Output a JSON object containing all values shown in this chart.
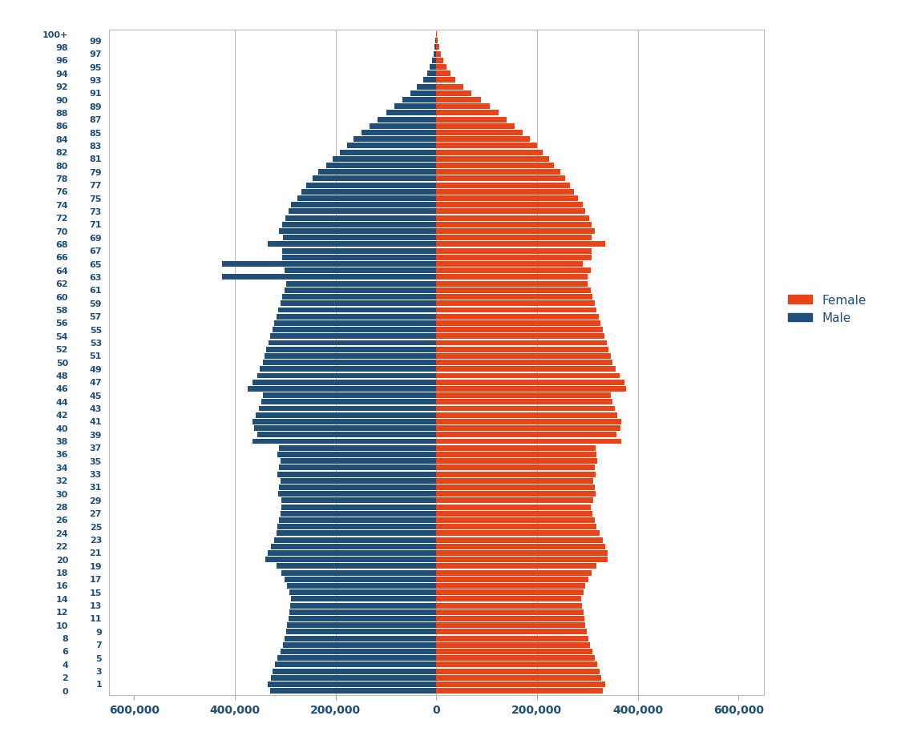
{
  "male_color": "#1F4E79",
  "female_color": "#E8441A",
  "background_color": "#FFFFFF",
  "legend_female": "Female",
  "legend_male": "Male",
  "xlim": 650000,
  "xticks": [
    -600000,
    -400000,
    -200000,
    0,
    200000,
    400000,
    600000
  ],
  "xtick_labels": [
    "600,000",
    "400,000",
    "200,000",
    "0",
    "200,000",
    "400,000",
    "600,000"
  ],
  "ages": [
    0,
    1,
    2,
    3,
    4,
    5,
    6,
    7,
    8,
    9,
    10,
    11,
    12,
    13,
    14,
    15,
    16,
    17,
    18,
    19,
    20,
    21,
    22,
    23,
    24,
    25,
    26,
    27,
    28,
    29,
    30,
    31,
    32,
    33,
    34,
    35,
    36,
    37,
    38,
    39,
    40,
    41,
    42,
    43,
    44,
    45,
    46,
    47,
    48,
    49,
    50,
    51,
    52,
    53,
    54,
    55,
    56,
    57,
    58,
    59,
    60,
    61,
    62,
    63,
    64,
    65,
    66,
    67,
    68,
    69,
    70,
    71,
    72,
    73,
    74,
    75,
    76,
    77,
    78,
    79,
    80,
    81,
    82,
    83,
    84,
    85,
    86,
    87,
    88,
    89,
    90,
    91,
    92,
    93,
    94,
    95,
    96,
    97,
    98,
    99,
    100
  ],
  "male": [
    330000,
    335000,
    328000,
    325000,
    320000,
    315000,
    310000,
    305000,
    302000,
    299000,
    296000,
    294000,
    292000,
    290000,
    288000,
    292000,
    296000,
    302000,
    308000,
    318000,
    340000,
    335000,
    328000,
    322000,
    318000,
    315000,
    312000,
    310000,
    308000,
    308000,
    314000,
    312000,
    310000,
    316000,
    312000,
    310000,
    316000,
    312000,
    365000,
    355000,
    362000,
    365000,
    358000,
    352000,
    348000,
    344000,
    375000,
    365000,
    355000,
    350000,
    345000,
    342000,
    338000,
    334000,
    330000,
    326000,
    322000,
    318000,
    314000,
    310000,
    306000,
    302000,
    298000,
    425000,
    302000,
    425000,
    306000,
    306000,
    335000,
    304000,
    312000,
    306000,
    300000,
    294000,
    288000,
    276000,
    268000,
    258000,
    246000,
    234000,
    218000,
    206000,
    192000,
    178000,
    164000,
    148000,
    132000,
    116000,
    100000,
    84000,
    68000,
    52000,
    38000,
    26000,
    18000,
    13000,
    9000,
    6000,
    3000,
    1500,
    500
  ],
  "female": [
    330000,
    335000,
    328000,
    325000,
    320000,
    315000,
    310000,
    305000,
    302000,
    299000,
    296000,
    294000,
    292000,
    290000,
    288000,
    292000,
    296000,
    302000,
    308000,
    318000,
    340000,
    340000,
    335000,
    330000,
    324000,
    318000,
    314000,
    310000,
    306000,
    312000,
    316000,
    314000,
    312000,
    316000,
    314000,
    320000,
    318000,
    316000,
    367000,
    358000,
    366000,
    368000,
    360000,
    354000,
    350000,
    346000,
    377000,
    374000,
    364000,
    356000,
    350000,
    346000,
    342000,
    338000,
    334000,
    330000,
    326000,
    322000,
    318000,
    314000,
    310000,
    306000,
    301000,
    301000,
    306000,
    291000,
    308000,
    308000,
    336000,
    308000,
    314000,
    308000,
    304000,
    296000,
    291000,
    281000,
    274000,
    266000,
    256000,
    246000,
    234000,
    224000,
    212000,
    200000,
    186000,
    172000,
    156000,
    140000,
    124000,
    106000,
    88000,
    70000,
    53000,
    38000,
    28000,
    20000,
    14000,
    9000,
    5500,
    3000,
    1500
  ]
}
